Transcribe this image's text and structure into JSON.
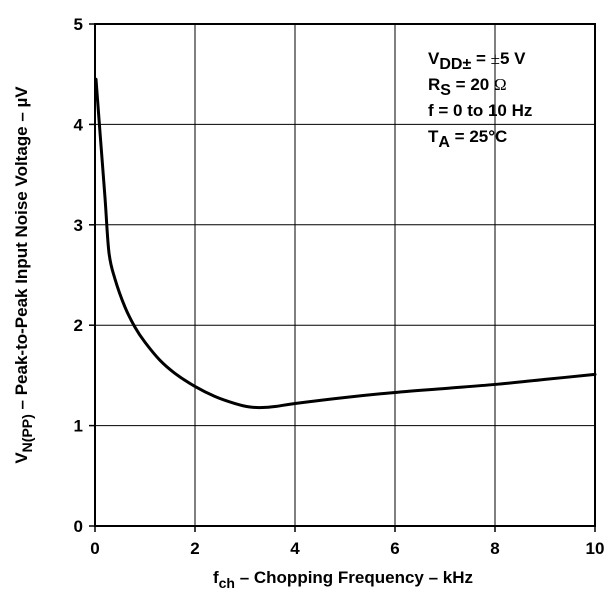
{
  "chart_data": {
    "type": "line",
    "xlabel": {
      "prefix": "f",
      "subscript": "ch",
      "rest": " – Chopping Frequency – kHz"
    },
    "ylabel": {
      "prefix": "V",
      "subscript": "N(PP)",
      "rest": " – Peak-to-Peak Input Noise Voltage – ",
      "unit": "µV"
    },
    "xlim": [
      0,
      10
    ],
    "ylim": [
      0,
      5
    ],
    "xticks": [
      "0",
      "2",
      "4",
      "6",
      "8",
      "10"
    ],
    "yticks": [
      "0",
      "1",
      "2",
      "3",
      "4",
      "5"
    ],
    "grid": true,
    "annotations": [
      {
        "main": "V",
        "sub": "DD±",
        "rest": " = ",
        "serif": "±",
        "tail": "5 V"
      },
      {
        "main": "R",
        "sub": "S",
        "rest": " = 20 ",
        "serif": "Ω",
        "tail": ""
      },
      {
        "main": "f = 0 to 10 Hz",
        "sub": "",
        "rest": "",
        "serif": "",
        "tail": ""
      },
      {
        "main": "T",
        "sub": "A",
        "rest": " = 25",
        "serif": "",
        "tail": "°C"
      }
    ],
    "annotation_position": "top-right",
    "series": [
      {
        "x": [
          0.02,
          0.1,
          0.2,
          0.28,
          0.4,
          0.6,
          0.8,
          1.0,
          1.3,
          1.6,
          2.0,
          2.4,
          2.8,
          3.1,
          3.35,
          3.6,
          4.0,
          5.0,
          6.0,
          7.0,
          8.0,
          9.0,
          10.0
        ],
        "y": [
          4.45,
          3.92,
          3.27,
          2.72,
          2.46,
          2.18,
          1.98,
          1.83,
          1.65,
          1.52,
          1.39,
          1.29,
          1.22,
          1.185,
          1.18,
          1.19,
          1.22,
          1.28,
          1.33,
          1.37,
          1.41,
          1.46,
          1.51
        ]
      }
    ],
    "colors": {
      "line": "#000000",
      "grid": "#000000",
      "background": "#ffffff"
    }
  }
}
